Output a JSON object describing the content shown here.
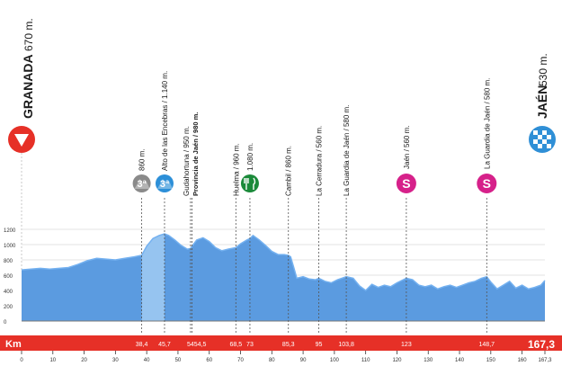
{
  "start": {
    "name": "GRANADA",
    "alt": "670 m."
  },
  "finish": {
    "name": "JAÉN",
    "alt": "530 m."
  },
  "km_label": "Km",
  "total_km": "167,3",
  "colors": {
    "profile": "#5b9be0",
    "profile_top": "#74b1f0",
    "climb_highlight": "#9cc9f2",
    "km_bar": "#e63027",
    "start_red": "#e63027",
    "finish_blue": "#2f8fd6",
    "sprint": "#d6218a",
    "feed": "#1b8a3a",
    "cat_gray": "#8a8a8a",
    "cat_blue": "#2c8fd8"
  },
  "waypoints": [
    {
      "km": 38.4,
      "km_label": "38,4",
      "name": "",
      "alt": "860 m.",
      "icon": "category-3-climb-icon",
      "icon_text": "3ª",
      "style": "cat_gray",
      "stacked": "alt_only"
    },
    {
      "km": 45.7,
      "km_label": "45,7",
      "name": "Alto de las Encebras",
      "alt": "1.140 m.",
      "icon": "category-3-climb-icon",
      "icon_text": "3ª",
      "style": "cat_blue",
      "stacked": "single"
    },
    {
      "km": 54.0,
      "km_label": "54",
      "name": "Gudahortuna",
      "alt": "950 m.",
      "name2": "Provincia de Jaén",
      "alt2": "980 m.",
      "km_label2": "54,5",
      "km2": 54.5,
      "style": "pair"
    },
    {
      "km": 68.5,
      "km_label": "68,5",
      "name": "Huelma",
      "alt": "960 m.",
      "style": "plain"
    },
    {
      "km": 73.0,
      "km_label": "73",
      "name": "",
      "alt": "1.080 m.",
      "icon": "feed-zone-icon",
      "style": "feed",
      "stacked": "alt_only"
    },
    {
      "km": 85.3,
      "km_label": "85,3",
      "name": "Cambil",
      "alt": "860 m.",
      "style": "plain"
    },
    {
      "km": 95.0,
      "km_label": "95",
      "name": "La Cerradura",
      "alt": "560 m.",
      "style": "plain"
    },
    {
      "km": 103.8,
      "km_label": "103,8",
      "name": "La Guardia de Jaén",
      "alt": "580 m.",
      "style": "plain"
    },
    {
      "km": 123.0,
      "km_label": "123",
      "name": "Jaén",
      "alt": "560 m.",
      "icon": "sprint-icon",
      "icon_text": "S",
      "style": "sprint"
    },
    {
      "km": 148.7,
      "km_label": "148,7",
      "name": "La Guardia de Jaén",
      "alt": "580 m.",
      "icon": "sprint-icon",
      "icon_text": "S",
      "style": "sprint"
    }
  ],
  "chart_data": {
    "type": "area",
    "title": "",
    "xlabel": "Km",
    "ylabel": "",
    "xlim": [
      0,
      167.3
    ],
    "ylim": [
      0,
      1200
    ],
    "y_ticks": [
      "0",
      "200",
      "400",
      "600",
      "800",
      "1000",
      "1200"
    ],
    "x_ticks": [
      "0",
      "10",
      "20",
      "30",
      "40",
      "50",
      "60",
      "70",
      "80",
      "90",
      "100",
      "110",
      "120",
      "130",
      "140",
      "150",
      "160",
      "167,3"
    ],
    "x_tick_values": [
      0,
      10,
      20,
      30,
      40,
      50,
      60,
      70,
      80,
      90,
      100,
      110,
      120,
      130,
      140,
      150,
      160,
      167.3
    ],
    "climb_highlight_km": [
      38.4,
      45.7
    ],
    "series": [
      {
        "x": [
          0,
          3,
          6,
          9,
          12,
          15,
          18,
          21,
          24,
          27,
          30,
          33,
          36,
          38.4,
          40,
          42,
          44,
          45.7,
          47,
          49,
          51,
          53,
          54,
          54.5,
          56,
          58,
          60,
          62,
          64,
          66,
          68.5,
          70,
          72,
          73,
          74,
          76,
          78,
          80,
          82,
          84,
          85.3,
          86,
          87,
          88,
          90,
          92,
          94,
          95,
          97,
          99,
          101,
          103.8,
          106,
          108,
          110,
          112,
          114,
          116,
          118,
          120,
          123,
          125,
          127,
          129,
          131,
          133,
          135,
          137,
          139,
          141,
          143,
          145,
          147,
          148.7,
          150,
          152,
          154,
          156,
          158,
          160,
          162,
          164,
          166,
          167.3
        ],
        "y": [
          670,
          680,
          690,
          680,
          690,
          700,
          740,
          790,
          820,
          810,
          800,
          820,
          840,
          860,
          980,
          1080,
          1120,
          1140,
          1120,
          1060,
          990,
          940,
          950,
          980,
          1060,
          1090,
          1040,
          960,
          920,
          940,
          960,
          1010,
          1060,
          1080,
          1120,
          1060,
          990,
          910,
          870,
          870,
          860,
          840,
          700,
          560,
          580,
          550,
          540,
          560,
          520,
          500,
          540,
          580,
          560,
          460,
          400,
          480,
          440,
          470,
          450,
          500,
          560,
          540,
          470,
          450,
          470,
          420,
          450,
          470,
          440,
          470,
          500,
          520,
          560,
          580,
          510,
          420,
          470,
          520,
          430,
          470,
          420,
          440,
          470,
          530
        ]
      }
    ]
  }
}
